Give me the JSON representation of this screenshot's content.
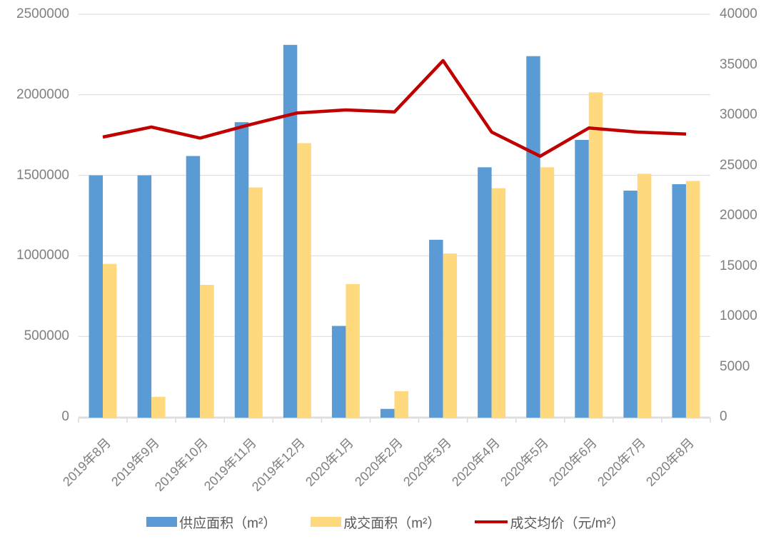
{
  "chart_data": {
    "type": "bar",
    "title": "",
    "categories": [
      "2019年8月",
      "2019年9月",
      "2019年10月",
      "2019年11月",
      "2019年12月",
      "2020年1月",
      "2020年2月",
      "2020年3月",
      "2020年4月",
      "2020年5月",
      "2020年6月",
      "2020年7月",
      "2020年8月"
    ],
    "series": [
      {
        "name": "供应面积（m²）",
        "type": "bar",
        "axis": "left",
        "color": "#5B9BD5",
        "values": [
          1500000,
          1500000,
          1620000,
          1830000,
          2310000,
          565000,
          50000,
          1100000,
          1550000,
          2240000,
          1720000,
          1405000,
          1445000
        ]
      },
      {
        "name": "成交面积（m²）",
        "type": "bar",
        "axis": "left",
        "color": "#FFD97D",
        "values": [
          950000,
          125000,
          820000,
          1425000,
          1700000,
          825000,
          160000,
          1015000,
          1420000,
          1550000,
          2015000,
          1510000,
          1465000
        ]
      },
      {
        "name": "成交均价（元/m²）",
        "type": "line",
        "axis": "right",
        "color": "#C00000",
        "values": [
          27800,
          28800,
          27700,
          29000,
          30200,
          30500,
          30300,
          35400,
          28300,
          25900,
          28700,
          28300,
          28100
        ]
      }
    ],
    "left_axis": {
      "min": 0,
      "max": 2500000,
      "step": 500000,
      "tick_labels": [
        "0",
        "500000",
        "1000000",
        "1500000",
        "2000000",
        "2500000"
      ]
    },
    "right_axis": {
      "min": 0,
      "max": 40000,
      "step": 5000,
      "tick_labels": [
        "0",
        "5000",
        "10000",
        "15000",
        "20000",
        "25000",
        "30000",
        "35000",
        "40000"
      ]
    },
    "grid": true,
    "gridline_color": "#D9D9D9",
    "axis_line_color": "#D9D9D9",
    "legend_position": "bottom"
  }
}
